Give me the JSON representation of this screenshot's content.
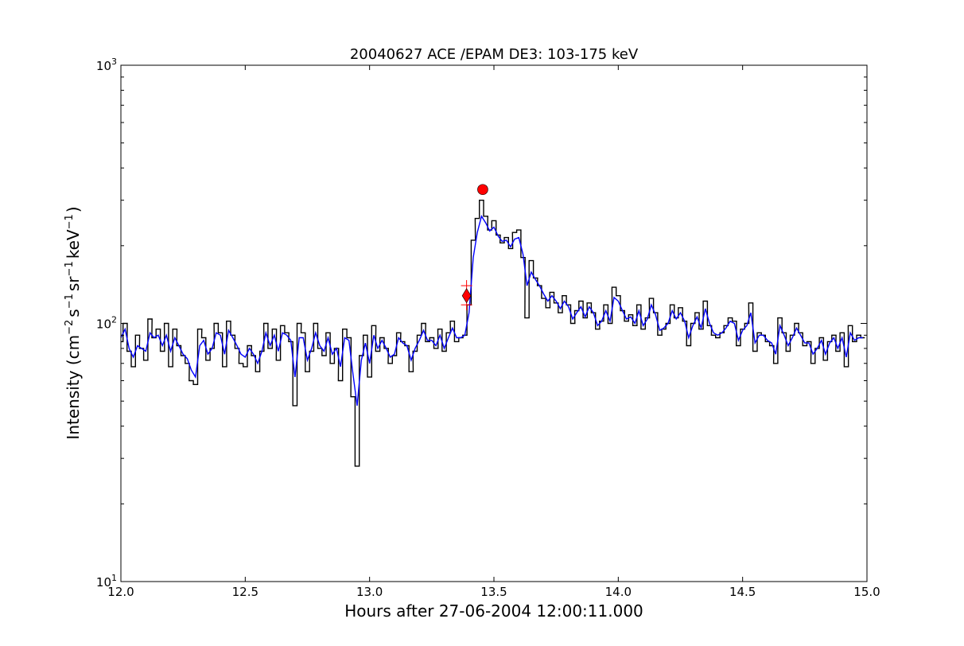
{
  "chart_data": {
    "type": "line",
    "title": "20040627 ACE /EPAM DE3: 103-175 keV",
    "xlabel": "Hours after 27-06-2004 12:00:11.000",
    "ylabel": {
      "prefix": "Intensity (cm",
      "exp1": "−2",
      "mid1": "s",
      "exp2": "−1",
      "mid2": "sr",
      "exp3": "−1",
      "mid3": "keV",
      "exp4": "−1",
      "suffix": ")"
    },
    "xlim": [
      12.0,
      15.0
    ],
    "ylim": [
      10,
      1000
    ],
    "yscale": "log",
    "grid": false,
    "x_ticks": [
      {
        "value": 12.0,
        "label": "12.0"
      },
      {
        "value": 12.5,
        "label": "12.5"
      },
      {
        "value": 13.0,
        "label": "13.0"
      },
      {
        "value": 13.5,
        "label": "13.5"
      },
      {
        "value": 14.0,
        "label": "14.0"
      },
      {
        "value": 14.5,
        "label": "14.5"
      },
      {
        "value": 15.0,
        "label": "15.0"
      }
    ],
    "y_ticks": [
      {
        "value": 10,
        "base": "10",
        "exp": "1"
      },
      {
        "value": 100,
        "base": "10",
        "exp": "2"
      },
      {
        "value": 1000,
        "base": "10",
        "exp": "3"
      }
    ],
    "series": [
      {
        "color": "#000000",
        "draw": "steps",
        "x": [
          12.0,
          12.017,
          12.033,
          12.05,
          12.067,
          12.083,
          12.1,
          12.117,
          12.133,
          12.15,
          12.167,
          12.183,
          12.2,
          12.217,
          12.233,
          12.25,
          12.267,
          12.283,
          12.3,
          12.317,
          12.333,
          12.35,
          12.367,
          12.383,
          12.4,
          12.417,
          12.433,
          12.45,
          12.467,
          12.483,
          12.5,
          12.517,
          12.533,
          12.55,
          12.567,
          12.583,
          12.6,
          12.617,
          12.633,
          12.65,
          12.667,
          12.683,
          12.7,
          12.717,
          12.733,
          12.75,
          12.767,
          12.783,
          12.8,
          12.817,
          12.833,
          12.85,
          12.867,
          12.883,
          12.9,
          12.917,
          12.933,
          12.95,
          12.967,
          12.983,
          13.0,
          13.017,
          13.033,
          13.05,
          13.067,
          13.083,
          13.1,
          13.117,
          13.133,
          13.15,
          13.167,
          13.183,
          13.2,
          13.217,
          13.233,
          13.25,
          13.267,
          13.283,
          13.3,
          13.317,
          13.333,
          13.35,
          13.367,
          13.383,
          13.4,
          13.417,
          13.433,
          13.45,
          13.467,
          13.483,
          13.5,
          13.517,
          13.533,
          13.55,
          13.567,
          13.583,
          13.6,
          13.617,
          13.633,
          13.65,
          13.667,
          13.683,
          13.7,
          13.717,
          13.733,
          13.75,
          13.767,
          13.783,
          13.8,
          13.817,
          13.833,
          13.85,
          13.867,
          13.883,
          13.9,
          13.917,
          13.933,
          13.95,
          13.967,
          13.983,
          14.0,
          14.017,
          14.033,
          14.05,
          14.067,
          14.083,
          14.1,
          14.117,
          14.133,
          14.15,
          14.167,
          14.183,
          14.2,
          14.217,
          14.233,
          14.25,
          14.267,
          14.283,
          14.3,
          14.317,
          14.333,
          14.35,
          14.367,
          14.383,
          14.4,
          14.417,
          14.433,
          14.45,
          14.467,
          14.483,
          14.5,
          14.517,
          14.533,
          14.55,
          14.567,
          14.583,
          14.6,
          14.617,
          14.633,
          14.65,
          14.667,
          14.683,
          14.7,
          14.717,
          14.733,
          14.75,
          14.767,
          14.783,
          14.8,
          14.817,
          14.833,
          14.85,
          14.867,
          14.883,
          14.9,
          14.917,
          14.933,
          14.95,
          14.967,
          14.983
        ],
        "y": [
          85,
          100,
          78,
          68,
          90,
          80,
          72,
          104,
          88,
          95,
          78,
          100,
          68,
          95,
          82,
          75,
          70,
          60,
          58,
          95,
          88,
          72,
          80,
          100,
          92,
          68,
          102,
          90,
          80,
          70,
          68,
          82,
          75,
          65,
          78,
          100,
          80,
          95,
          72,
          98,
          92,
          85,
          48,
          100,
          92,
          65,
          78,
          100,
          80,
          75,
          92,
          70,
          80,
          60,
          95,
          88,
          52,
          28,
          75,
          90,
          62,
          98,
          78,
          88,
          80,
          70,
          75,
          92,
          85,
          82,
          65,
          78,
          90,
          100,
          85,
          88,
          80,
          95,
          78,
          92,
          102,
          85,
          88,
          90,
          118,
          210,
          255,
          300,
          260,
          230,
          250,
          220,
          205,
          215,
          195,
          225,
          230,
          180,
          105,
          175,
          150,
          140,
          125,
          115,
          132,
          120,
          110,
          128,
          118,
          100,
          112,
          122,
          105,
          120,
          110,
          95,
          102,
          118,
          100,
          138,
          128,
          112,
          102,
          108,
          98,
          118,
          95,
          105,
          125,
          110,
          90,
          95,
          100,
          118,
          105,
          115,
          102,
          82,
          100,
          110,
          95,
          122,
          98,
          90,
          88,
          92,
          98,
          105,
          102,
          82,
          95,
          100,
          120,
          78,
          92,
          90,
          85,
          82,
          70,
          105,
          92,
          78,
          90,
          100,
          92,
          82,
          85,
          70,
          80,
          88,
          72,
          85,
          90,
          78,
          92,
          68,
          98,
          85,
          90,
          88
        ]
      },
      {
        "color": "#0000ff",
        "draw": "line",
        "x": [
          12.0,
          12.017,
          12.033,
          12.05,
          12.067,
          12.083,
          12.1,
          12.117,
          12.133,
          12.15,
          12.167,
          12.183,
          12.2,
          12.217,
          12.233,
          12.25,
          12.267,
          12.283,
          12.3,
          12.317,
          12.333,
          12.35,
          12.367,
          12.383,
          12.4,
          12.417,
          12.433,
          12.45,
          12.467,
          12.483,
          12.5,
          12.517,
          12.533,
          12.55,
          12.567,
          12.583,
          12.6,
          12.617,
          12.633,
          12.65,
          12.667,
          12.683,
          12.7,
          12.717,
          12.733,
          12.75,
          12.767,
          12.783,
          12.8,
          12.817,
          12.833,
          12.85,
          12.867,
          12.883,
          12.9,
          12.917,
          12.933,
          12.95,
          12.967,
          12.983,
          13.0,
          13.017,
          13.033,
          13.05,
          13.067,
          13.083,
          13.1,
          13.117,
          13.133,
          13.15,
          13.167,
          13.183,
          13.2,
          13.217,
          13.233,
          13.25,
          13.267,
          13.283,
          13.3,
          13.317,
          13.333,
          13.35,
          13.367,
          13.383,
          13.4,
          13.417,
          13.433,
          13.45,
          13.467,
          13.483,
          13.5,
          13.517,
          13.533,
          13.55,
          13.567,
          13.583,
          13.6,
          13.617,
          13.633,
          13.65,
          13.667,
          13.683,
          13.7,
          13.717,
          13.733,
          13.75,
          13.767,
          13.783,
          13.8,
          13.817,
          13.833,
          13.85,
          13.867,
          13.883,
          13.9,
          13.917,
          13.933,
          13.95,
          13.967,
          13.983,
          14.0,
          14.017,
          14.033,
          14.05,
          14.067,
          14.083,
          14.1,
          14.117,
          14.133,
          14.15,
          14.167,
          14.183,
          14.2,
          14.217,
          14.233,
          14.25,
          14.267,
          14.283,
          14.3,
          14.317,
          14.333,
          14.35,
          14.367,
          14.383,
          14.4,
          14.417,
          14.433,
          14.45,
          14.467,
          14.483,
          14.5,
          14.517,
          14.533,
          14.55,
          14.567,
          14.583,
          14.6,
          14.617,
          14.633,
          14.65,
          14.667,
          14.683,
          14.7,
          14.717,
          14.733,
          14.75,
          14.767,
          14.783,
          14.8,
          14.817,
          14.833,
          14.85,
          14.867,
          14.883,
          14.9,
          14.917,
          14.933,
          14.95,
          14.967,
          14.983
        ],
        "y": [
          88,
          95,
          80,
          74,
          82,
          80,
          78,
          92,
          88,
          90,
          82,
          90,
          78,
          88,
          82,
          76,
          73,
          66,
          62,
          82,
          86,
          76,
          80,
          92,
          90,
          76,
          94,
          88,
          82,
          76,
          74,
          80,
          76,
          70,
          78,
          92,
          82,
          90,
          78,
          92,
          90,
          86,
          62,
          88,
          88,
          72,
          80,
          92,
          82,
          78,
          88,
          76,
          80,
          68,
          88,
          86,
          64,
          48,
          72,
          84,
          70,
          90,
          80,
          86,
          80,
          74,
          76,
          88,
          84,
          82,
          72,
          80,
          86,
          94,
          86,
          86,
          82,
          90,
          80,
          88,
          96,
          88,
          88,
          90,
          110,
          180,
          225,
          260,
          245,
          228,
          236,
          218,
          208,
          210,
          198,
          212,
          215,
          185,
          140,
          158,
          148,
          140,
          130,
          122,
          128,
          122,
          114,
          122,
          116,
          104,
          110,
          116,
          106,
          116,
          110,
          98,
          102,
          112,
          102,
          126,
          122,
          112,
          104,
          106,
          100,
          112,
          98,
          104,
          118,
          108,
          94,
          96,
          100,
          112,
          104,
          110,
          102,
          88,
          98,
          106,
          96,
          114,
          100,
          92,
          90,
          92,
          96,
          102,
          100,
          86,
          94,
          98,
          110,
          84,
          90,
          90,
          86,
          84,
          76,
          98,
          90,
          82,
          88,
          96,
          90,
          84,
          84,
          76,
          80,
          86,
          76,
          84,
          88,
          80,
          88,
          74,
          92,
          86,
          88,
          88
        ]
      }
    ],
    "markers": [
      {
        "shape": "plus",
        "x": 13.39,
        "y": 140,
        "color": "#ff0000"
      },
      {
        "shape": "plus",
        "x": 13.39,
        "y": 118,
        "color": "#ff0000"
      },
      {
        "shape": "diamond",
        "x": 13.39,
        "y": 128,
        "color": "#ff0000"
      },
      {
        "shape": "circle",
        "x": 13.455,
        "y": 330,
        "color": "#ff0000"
      }
    ]
  }
}
